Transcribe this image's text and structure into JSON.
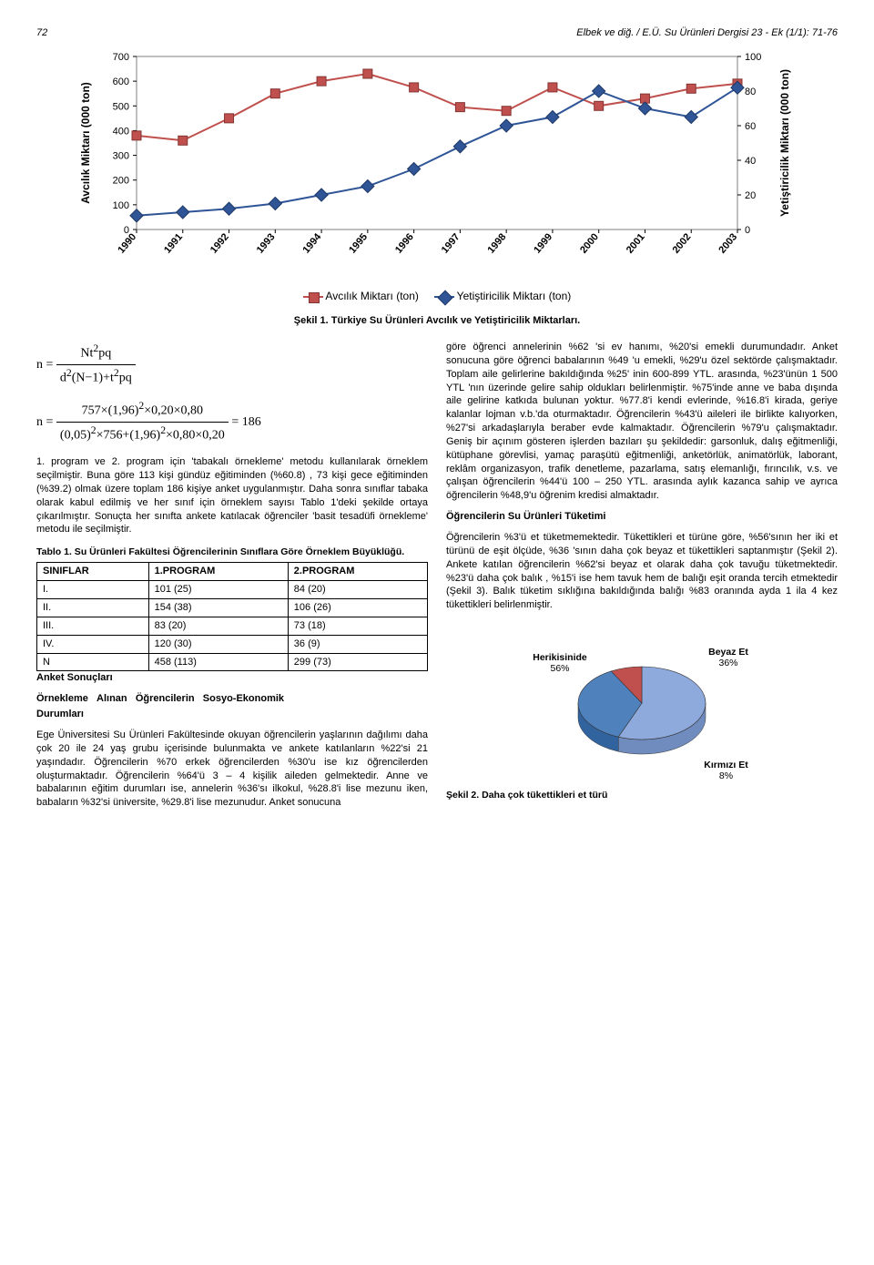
{
  "header": {
    "page_number": "72",
    "running_head": "Elbek ve diğ. / E.Ü. Su Ürünleri Dergisi 23 - Ek (1/1): 71-76"
  },
  "line_chart": {
    "type": "line",
    "years": [
      "1990",
      "1991",
      "1992",
      "1993",
      "1994",
      "1995",
      "1996",
      "1997",
      "1998",
      "1999",
      "2000",
      "2001",
      "2002",
      "2003"
    ],
    "series": [
      {
        "name": "Avcılık Miktarı (ton)",
        "marker": "square",
        "color": "#c0504d",
        "values": [
          380,
          360,
          450,
          550,
          600,
          630,
          575,
          495,
          480,
          575,
          500,
          530,
          570,
          590
        ]
      },
      {
        "name": "Yetiştiricilik Miktarı (ton)",
        "marker": "diamond",
        "color": "#2f5597",
        "values": [
          8,
          10,
          12,
          15,
          20,
          25,
          35,
          48,
          60,
          65,
          80,
          70,
          65,
          82
        ]
      }
    ],
    "left_axis": {
      "label": "Avcılık Miktarı (000 ton)",
      "min": 0,
      "max": 700,
      "step": 100
    },
    "right_axis": {
      "label": "Yetiştiricilik Miktarı (000 ton)",
      "min": 0,
      "max": 100,
      "step": 20
    },
    "background_color": "#ffffff",
    "grid_color": "#7f7f7f",
    "label_fontsize": 11
  },
  "fig1_caption": "Şekil 1. Türkiye Su Ürünleri Avcılık ve Yetiştiricilik Miktarları.",
  "formula": {
    "line1_html": "n = <span style='display:inline-block;vertical-align:middle;text-align:center'><span style='display:block;border-bottom:1px solid #000;padding:0 4px'>Nt<sup>2</sup>pq</span><span style='display:block;padding:0 4px'>d<sup>2</sup>(N−1)+t<sup>2</sup>pq</span></span>",
    "line2_html": "n = <span style='display:inline-block;vertical-align:middle;text-align:center'><span style='display:block;border-bottom:1px solid #000;padding:0 4px'>757×(1,96)<sup>2</sup>×0,20×0,80</span><span style='display:block;padding:0 4px'>(0,05)<sup>2</sup>×756+(1,96)<sup>2</sup>×0,80×0,20</span></span> = 186"
  },
  "left_para1": "1. program ve 2. program için 'tabakalı örnekleme' metodu kullanılarak örneklem seçilmiştir. Buna göre 113 kişi gündüz eğitiminden (%60.8) , 73 kişi gece eğitiminden (%39.2) olmak üzere toplam 186 kişiye anket uygulanmıştır. Daha sonra sınıflar tabaka olarak kabul edilmiş ve her sınıf için örneklem sayısı Tablo 1'deki şekilde ortaya çıkarılmıştır. Sonuçta her sınıfta ankete katılacak öğrenciler 'basit tesadüfi örnekleme' metodu ile seçilmiştir.",
  "table1": {
    "title": "Tablo 1. Su Ürünleri Fakültesi Öğrencilerinin Sınıflara Göre Örneklem Büyüklüğü.",
    "columns": [
      "SINIFLAR",
      "1.PROGRAM",
      "2.PROGRAM"
    ],
    "rows": [
      [
        "I.",
        "101 (25)",
        "84 (20)"
      ],
      [
        "II.",
        "154 (38)",
        "106 (26)"
      ],
      [
        "III.",
        "83 (20)",
        "73 (18)"
      ],
      [
        "IV.",
        "120 (30)",
        "36 (9)"
      ],
      [
        "N",
        "458 (113)",
        "299 (73)"
      ]
    ]
  },
  "left_head2": "Anket Sonuçları",
  "left_head3": "Örnekleme Alınan Öğrencilerin Sosyo-Ekonomik Durumları",
  "left_para2": "Ege Üniversitesi Su Ürünleri Fakültesinde okuyan öğrencilerin yaşlarının dağılımı daha çok 20 ile 24 yaş grubu içerisinde bulunmakta ve ankete katılanların %22'si 21 yaşındadır. Öğrencilerin %70 erkek öğrencilerden %30'u ise kız öğrencilerden oluşturmaktadır. Öğrencilerin %64'ü 3 – 4 kişilik aileden gelmektedir. Anne ve babalarının eğitim durumları ise, annelerin %36'sı ilkokul, %28.8'i lise mezunu iken, babaların %32'si üniversite, %29.8'i lise mezunudur. Anket sonucuna",
  "right_para1": "göre öğrenci annelerinin %62 'si ev hanımı, %20'si emekli durumundadır. Anket sonucuna göre öğrenci babalarının %49 'u emekli, %29'u özel sektörde çalışmaktadır. Toplam aile gelirlerine bakıldığında %25' inin 600-899 YTL. arasında, %23'ünün 1 500 YTL 'nın üzerinde gelire sahip oldukları belirlenmiştir. %75'inde anne ve baba dışında aile gelirine katkıda bulunan yoktur. %77.8'i kendi evlerinde, %16.8'i kirada, geriye kalanlar lojman v.b.'da oturmaktadır. Öğrencilerin %43'ü aileleri ile birlikte kalıyorken, %27'si arkadaşlarıyla beraber evde kalmaktadır. Öğrencilerin %79'u çalışmaktadır. Geniş bir açınım gösteren işlerden bazıları şu şekildedir: garsonluk, dalış eğitmenliği, kütüphane görevlisi, yamaç paraşütü eğitmenliği, anketörlük, animatörlük, laborant, reklâm organizasyon, trafik denetleme, pazarlama, satış elemanlığı, fırıncılık, v.s. ve çalışan öğrencilerin %44'ü 100 – 250 YTL. arasında aylık kazanca sahip ve ayrıca öğrencilerin %48,9'u öğrenim kredisi almaktadır.",
  "right_head2": "Öğrencilerin Su Ürünleri Tüketimi",
  "right_para2": "Öğrencilerin %3'ü et tüketmemektedir. Tükettikleri et türüne göre, %56'sının her iki et türünü de eşit ölçüde, %36 'sının daha çok beyaz et tükettikleri saptanmıştır (Şekil 2). Ankete katılan öğrencilerin %62'si beyaz et olarak daha çok tavuğu tüketmektedir. %23'ü daha çok balık , %15'i ise hem tavuk hem de balığı eşit oranda tercih etmektedir (Şekil 3). Balık tüketim sıklığına bakıldığında balığı %83 oranında ayda 1 ila 4 kez tükettikleri belirlenmiştir.",
  "pie_chart": {
    "type": "pie",
    "background_color": "#ffffff",
    "slices": [
      {
        "label": "Herikisinide",
        "percent": 56,
        "percent_label": "56%",
        "color": "#8ea9db"
      },
      {
        "label": "Beyaz Et",
        "percent": 36,
        "percent_label": "36%",
        "color": "#4f81bd"
      },
      {
        "label": "Kırmızı Et",
        "percent": 8,
        "percent_label": "8%",
        "color": "#c0504d"
      }
    ]
  },
  "fig2_caption": "Şekil 2. Daha çok tükettikleri et türü"
}
